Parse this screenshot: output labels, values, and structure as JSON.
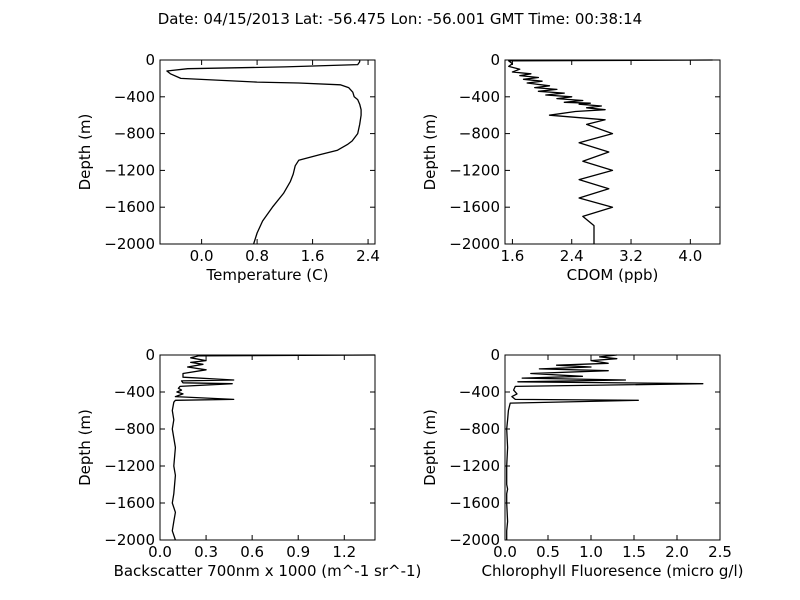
{
  "figure": {
    "title": "Date: 04/15/2013  Lat:  -56.475 Lon:  -56.001  GMT Time: 00:38:14"
  },
  "chart_data": [
    {
      "type": "line",
      "xlabel": "Temperature (C)",
      "ylabel": "Depth (m)",
      "xlim": [
        -0.6,
        2.5
      ],
      "ylim": [
        -2000,
        0
      ],
      "xticks": [
        0.0,
        0.8,
        1.6,
        2.4
      ],
      "xticklabels": [
        "0.0",
        "0.8",
        "1.6",
        "2.4"
      ],
      "yticks": [
        0,
        -400,
        -800,
        -1200,
        -1600,
        -2000
      ],
      "yticklabels": [
        "0",
        "−400",
        "−800",
        "−1200",
        "−1600",
        "−2000"
      ],
      "series": [
        {
          "x": [
            2.28,
            2.28,
            2.25,
            1.2,
            -0.2,
            -0.5,
            -0.45,
            -0.3,
            0.8,
            1.4,
            2.0,
            2.12,
            2.18,
            2.2,
            2.25,
            2.28,
            2.3,
            2.3,
            2.28,
            2.25,
            2.17,
            2.1,
            1.96,
            1.7,
            1.4,
            1.35,
            1.32,
            1.28,
            1.18,
            1.02,
            0.88,
            0.8,
            0.75
          ],
          "y": [
            0,
            -20,
            -50,
            -75,
            -95,
            -120,
            -150,
            -200,
            -240,
            -250,
            -270,
            -300,
            -350,
            -400,
            -430,
            -480,
            -540,
            -600,
            -700,
            -800,
            -880,
            -920,
            -980,
            -1030,
            -1090,
            -1150,
            -1240,
            -1320,
            -1450,
            -1600,
            -1750,
            -1880,
            -2000
          ]
        }
      ]
    },
    {
      "type": "line",
      "xlabel": "CDOM (ppb)",
      "ylabel": "Depth (m)",
      "xlim": [
        1.5,
        4.4
      ],
      "ylim": [
        -2000,
        0
      ],
      "xticks": [
        1.6,
        2.4,
        3.2,
        4.0
      ],
      "xticklabels": [
        "1.6",
        "2.4",
        "3.2",
        "4.0"
      ],
      "yticks": [
        0,
        -400,
        -800,
        -1200,
        -1600,
        -2000
      ],
      "yticklabels": [
        "0",
        "−400",
        "−800",
        "−1200",
        "−1600",
        "−2000"
      ],
      "series": [
        {
          "x": [
            4.3,
            1.55,
            1.6,
            1.55,
            1.7,
            1.6,
            1.85,
            1.7,
            1.95,
            1.75,
            2.0,
            1.8,
            2.1,
            1.9,
            2.2,
            1.95,
            2.3,
            2.05,
            2.4,
            2.2,
            2.55,
            2.3,
            2.65,
            2.5,
            2.8,
            2.6,
            2.85,
            2.45,
            2.1,
            2.85,
            2.6,
            2.95,
            2.5,
            2.9,
            2.55,
            2.95,
            2.5,
            2.9,
            2.5,
            2.95,
            2.55,
            2.7,
            2.7
          ],
          "y": [
            0,
            -10,
            -40,
            -70,
            -100,
            -130,
            -150,
            -170,
            -190,
            -210,
            -230,
            -250,
            -280,
            -300,
            -320,
            -340,
            -360,
            -380,
            -400,
            -420,
            -440,
            -460,
            -470,
            -480,
            -500,
            -520,
            -540,
            -560,
            -600,
            -650,
            -700,
            -800,
            -900,
            -1000,
            -1100,
            -1200,
            -1300,
            -1400,
            -1500,
            -1600,
            -1700,
            -1800,
            -2000
          ]
        }
      ]
    },
    {
      "type": "line",
      "xlabel": "Backscatter 700nm x 1000 (m^-1 sr^-1)",
      "ylabel": "Depth (m)",
      "xlim": [
        0.0,
        1.4
      ],
      "ylim": [
        -2000,
        0
      ],
      "xticks": [
        0.0,
        0.3,
        0.6,
        0.9,
        1.2
      ],
      "xticklabels": [
        "0.0",
        "0.3",
        "0.6",
        "0.9",
        "1.2"
      ],
      "yticks": [
        0,
        -400,
        -800,
        -1200,
        -1600,
        -2000
      ],
      "yticklabels": [
        "0",
        "−400",
        "−800",
        "−1200",
        "−1600",
        "−2000"
      ],
      "series": [
        {
          "x": [
            1.4,
            0.25,
            0.2,
            0.3,
            0.2,
            0.28,
            0.18,
            0.3,
            0.15,
            0.15,
            0.48,
            0.14,
            0.15,
            0.47,
            0.13,
            0.12,
            0.14,
            0.11,
            0.15,
            0.1,
            0.48,
            0.1,
            0.09,
            0.08,
            0.09,
            0.08,
            0.1,
            0.09,
            0.1,
            0.09,
            0.08,
            0.1,
            0.09,
            0.08,
            0.1
          ],
          "y": [
            0,
            -10,
            -30,
            -60,
            -80,
            -100,
            -130,
            -160,
            -200,
            -240,
            -270,
            -280,
            -300,
            -310,
            -340,
            -360,
            -380,
            -400,
            -420,
            -450,
            -480,
            -490,
            -510,
            -600,
            -700,
            -800,
            -1000,
            -1200,
            -1300,
            -1500,
            -1600,
            -1700,
            -1800,
            -1900,
            -2000
          ]
        }
      ]
    },
    {
      "type": "line",
      "xlabel": "Chlorophyll Fluoresence (micro g/l)",
      "ylabel": "Depth (m)",
      "xlim": [
        0.0,
        2.5
      ],
      "ylim": [
        -2000,
        0
      ],
      "xticks": [
        0.0,
        0.5,
        1.0,
        1.5,
        2.0,
        2.5
      ],
      "xticklabels": [
        "0.0",
        "0.5",
        "1.0",
        "1.5",
        "2.0",
        "2.5"
      ],
      "yticks": [
        0,
        -400,
        -800,
        -1200,
        -1600,
        -2000
      ],
      "yticklabels": [
        "0",
        "−400",
        "−800",
        "−1200",
        "−1600",
        "−2000"
      ],
      "series": [
        {
          "x": [
            1.3,
            1.1,
            1.3,
            1.0,
            1.2,
            0.6,
            1.0,
            0.4,
            1.2,
            0.3,
            0.9,
            0.2,
            1.4,
            0.15,
            2.3,
            0.12,
            0.1,
            0.14,
            0.08,
            0.12,
            1.55,
            0.06,
            0.04,
            0.03,
            0.02,
            0.03,
            0.02,
            0.02,
            0.03,
            0.02,
            0.02,
            0.03,
            0.02,
            0.02
          ],
          "y": [
            0,
            -20,
            -40,
            -60,
            -90,
            -110,
            -130,
            -150,
            -170,
            -200,
            -230,
            -250,
            -270,
            -290,
            -310,
            -340,
            -380,
            -420,
            -450,
            -480,
            -490,
            -520,
            -600,
            -700,
            -800,
            -1000,
            -1200,
            -1400,
            -1450,
            -1500,
            -1600,
            -1800,
            -1900,
            -2000
          ]
        }
      ]
    }
  ]
}
